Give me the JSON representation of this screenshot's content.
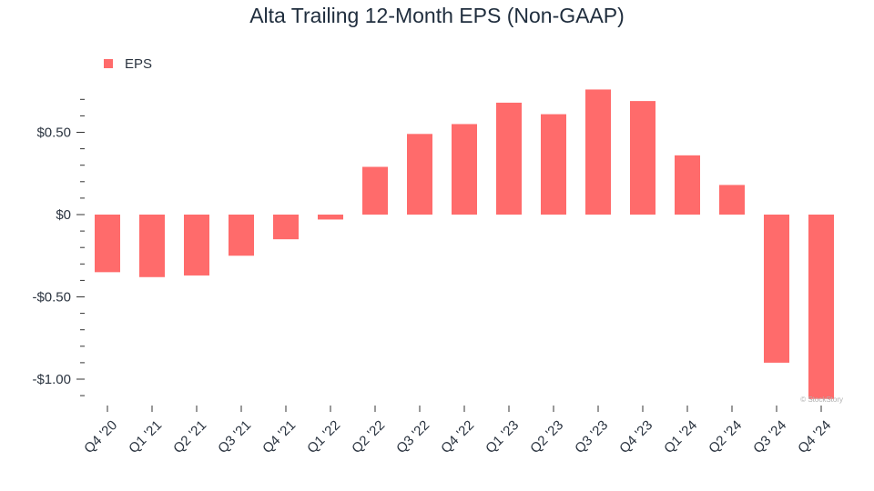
{
  "chart_data": {
    "type": "bar",
    "title": "Alta Trailing 12-Month EPS (Non-GAAP)",
    "xlabel": "",
    "ylabel": "",
    "categories": [
      "Q4 '20",
      "Q1 '21",
      "Q2 '21",
      "Q3 '21",
      "Q4 '21",
      "Q1 '22",
      "Q2 '22",
      "Q3 '22",
      "Q4 '22",
      "Q1 '23",
      "Q2 '23",
      "Q3 '23",
      "Q4 '23",
      "Q1 '24",
      "Q2 '24",
      "Q3 '24",
      "Q4 '24"
    ],
    "series": [
      {
        "name": "EPS",
        "color": "#ff6b6b",
        "values": [
          -0.35,
          -0.38,
          -0.37,
          -0.25,
          -0.15,
          -0.03,
          0.29,
          0.49,
          0.55,
          0.68,
          0.61,
          0.76,
          0.69,
          0.36,
          0.18,
          -0.9,
          -1.12
        ]
      }
    ],
    "ylim": [
      -1.12,
      0.72
    ],
    "yticks": [
      {
        "value": 0.5,
        "label": "$0.50"
      },
      {
        "value": 0,
        "label": "$0"
      },
      {
        "value": -0.5,
        "label": "-$0.50"
      },
      {
        "value": -1.0,
        "label": "-$1.00"
      }
    ],
    "minor_tick_step": 0.1,
    "legend": {
      "position": "top-left",
      "label": "EPS"
    },
    "grid": false,
    "watermark": "© StockStory"
  }
}
